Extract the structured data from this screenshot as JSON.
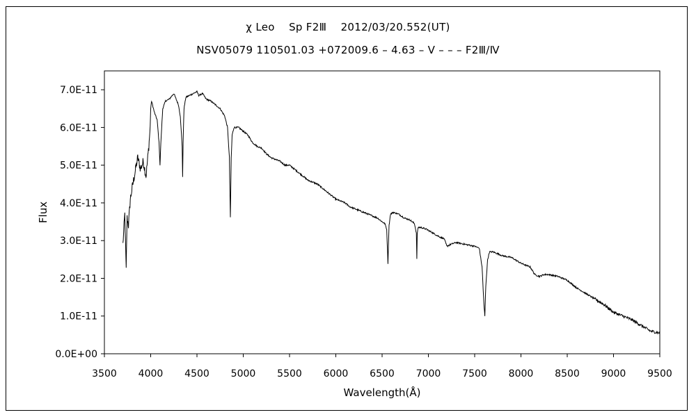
{
  "chart_data": {
    "type": "line",
    "title": "χ Leo　 Sp F2Ⅲ　 2012/03/20.552(UT)",
    "subtitle": "NSV05079 110501.03 +072009.6 – 4.63 – V – – – F2Ⅲ/Ⅳ",
    "xlabel": "Wavelength(Å)",
    "ylabel": "Flux",
    "xlim": [
      3500,
      9500
    ],
    "ylim": [
      0,
      7.5e-11
    ],
    "xticks": [
      "3500",
      "4000",
      "4500",
      "5000",
      "5500",
      "6000",
      "6500",
      "7000",
      "7500",
      "8000",
      "8500",
      "9000",
      "9500"
    ],
    "yticks": [
      "0.0E+00",
      "1.0E-11",
      "2.0E-11",
      "3.0E-11",
      "4.0E-11",
      "5.0E-11",
      "6.0E-11",
      "7.0E-11"
    ],
    "grid": false,
    "line_color": "#000000",
    "series": [
      {
        "x": [
          3700,
          3720,
          3735,
          3745,
          3760,
          3780,
          3800,
          3830,
          3860,
          3890,
          3920,
          3950,
          3980,
          3995,
          4000,
          4010,
          4040,
          4070,
          4090,
          4101,
          4110,
          4130,
          4160,
          4200,
          4250,
          4300,
          4320,
          4340,
          4345,
          4350,
          4360,
          4380,
          4420,
          4460,
          4500,
          4520,
          4560,
          4600,
          4650,
          4700,
          4750,
          4800,
          4830,
          4850,
          4861,
          4870,
          4880,
          4900,
          4950,
          5000,
          5050,
          5100,
          5150,
          5200,
          5250,
          5300,
          5350,
          5400,
          5450,
          5500,
          5550,
          5600,
          5650,
          5700,
          5750,
          5800,
          5850,
          5900,
          5950,
          6000,
          6050,
          6100,
          6150,
          6200,
          6250,
          6300,
          6350,
          6400,
          6450,
          6500,
          6530,
          6550,
          6563,
          6575,
          6590,
          6620,
          6680,
          6740,
          6800,
          6850,
          6870,
          6875,
          6880,
          6890,
          6920,
          6980,
          7050,
          7120,
          7170,
          7200,
          7240,
          7300,
          7400,
          7500,
          7550,
          7580,
          7600,
          7610,
          7620,
          7640,
          7660,
          7700,
          7800,
          7900,
          8000,
          8100,
          8150,
          8200,
          8250,
          8300,
          8400,
          8500,
          8600,
          8700,
          8800,
          8900,
          9000,
          9100,
          9200,
          9300,
          9400,
          9500
        ],
        "y": [
          2.9e-11,
          3.7e-11,
          2.2e-11,
          3.6e-11,
          3.4e-11,
          4.1e-11,
          4.4e-11,
          4.8e-11,
          5.2e-11,
          4.9e-11,
          5.1e-11,
          4.7e-11,
          5.5e-11,
          6e-11,
          6.5e-11,
          6.7e-11,
          6.4e-11,
          6.2e-11,
          5.6e-11,
          5e-11,
          5.6e-11,
          6.5e-11,
          6.7e-11,
          6.75e-11,
          6.9e-11,
          6.6e-11,
          6.3e-11,
          5.5e-11,
          4.7e-11,
          5.6e-11,
          6.5e-11,
          6.8e-11,
          6.85e-11,
          6.9e-11,
          6.95e-11,
          6.85e-11,
          6.9e-11,
          6.75e-11,
          6.7e-11,
          6.6e-11,
          6.5e-11,
          6.3e-11,
          6e-11,
          5.2e-11,
          3.6e-11,
          5.2e-11,
          5.8e-11,
          6e-11,
          6e-11,
          5.9e-11,
          5.8e-11,
          5.6e-11,
          5.5e-11,
          5.45e-11,
          5.3e-11,
          5.2e-11,
          5.15e-11,
          5.1e-11,
          5e-11,
          5e-11,
          4.9e-11,
          4.8e-11,
          4.7e-11,
          4.6e-11,
          4.55e-11,
          4.5e-11,
          4.4e-11,
          4.3e-11,
          4.2e-11,
          4.1e-11,
          4.05e-11,
          4e-11,
          3.9e-11,
          3.85e-11,
          3.8e-11,
          3.75e-11,
          3.7e-11,
          3.65e-11,
          3.6e-11,
          3.5e-11,
          3.45e-11,
          3.3e-11,
          2.4e-11,
          3.4e-11,
          3.7e-11,
          3.75e-11,
          3.7e-11,
          3.6e-11,
          3.55e-11,
          3.45e-11,
          3.2e-11,
          2.5e-11,
          3.2e-11,
          3.35e-11,
          3.35e-11,
          3.3e-11,
          3.2e-11,
          3.1e-11,
          3.05e-11,
          2.85e-11,
          2.9e-11,
          2.95e-11,
          2.9e-11,
          2.85e-11,
          2.8e-11,
          2.3e-11,
          1.3e-11,
          1e-11,
          1.8e-11,
          2.5e-11,
          2.7e-11,
          2.7e-11,
          2.6e-11,
          2.55e-11,
          2.4e-11,
          2.3e-11,
          2.1e-11,
          2.05e-11,
          2.1e-11,
          2.1e-11,
          2.05e-11,
          1.95e-11,
          1.75e-11,
          1.6e-11,
          1.45e-11,
          1.3e-11,
          1.1e-11,
          1e-11,
          9e-12,
          7.5e-12,
          6e-12,
          5.5e-12
        ]
      }
    ]
  }
}
